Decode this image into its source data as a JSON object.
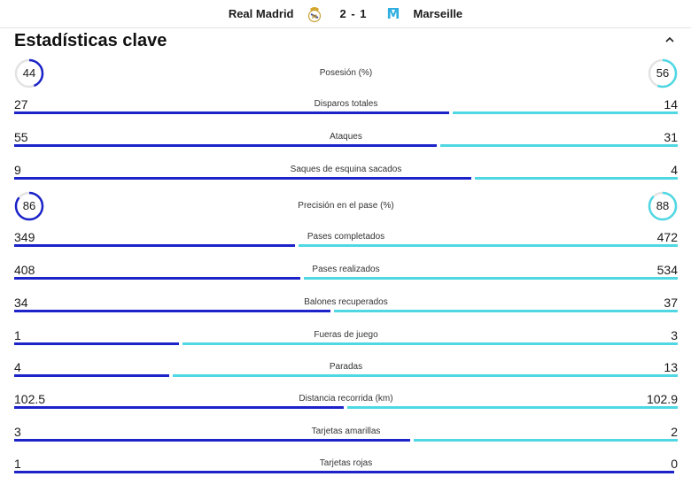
{
  "match": {
    "home_team": "Real Madrid",
    "away_team": "Marseille",
    "score": "2 - 1",
    "home_crest_icon": "real-madrid-crest",
    "away_crest_icon": "marseille-crest"
  },
  "section": {
    "title": "Estadísticas clave"
  },
  "colors": {
    "home": "#1b23c9",
    "away": "#4fd8e3"
  },
  "stats": [
    {
      "label": "Posesión (%)",
      "home": "44",
      "away": "56",
      "home_fraction": 0.44,
      "away_fraction": 0.56,
      "kind": "ring"
    },
    {
      "label": "Disparos totales",
      "home": "27",
      "away": "14",
      "home_fraction": 0.659,
      "away_fraction": 0.341,
      "kind": "bar"
    },
    {
      "label": "Ataques",
      "home": "55",
      "away": "31",
      "home_fraction": 0.64,
      "away_fraction": 0.36,
      "kind": "bar"
    },
    {
      "label": "Saques de esquina sacados",
      "home": "9",
      "away": "4",
      "home_fraction": 0.692,
      "away_fraction": 0.308,
      "kind": "bar"
    },
    {
      "label": "Precisión en el pase (%)",
      "home": "86",
      "away": "88",
      "home_fraction": 0.86,
      "away_fraction": 0.88,
      "kind": "ring"
    },
    {
      "label": "Pases completados",
      "home": "349",
      "away": "472",
      "home_fraction": 0.425,
      "away_fraction": 0.575,
      "kind": "bar"
    },
    {
      "label": "Pases realizados",
      "home": "408",
      "away": "534",
      "home_fraction": 0.433,
      "away_fraction": 0.567,
      "kind": "bar"
    },
    {
      "label": "Balones recuperados",
      "home": "34",
      "away": "37",
      "home_fraction": 0.479,
      "away_fraction": 0.521,
      "kind": "bar"
    },
    {
      "label": "Fueras de juego",
      "home": "1",
      "away": "3",
      "home_fraction": 0.25,
      "away_fraction": 0.75,
      "kind": "bar"
    },
    {
      "label": "Paradas",
      "home": "4",
      "away": "13",
      "home_fraction": 0.235,
      "away_fraction": 0.765,
      "kind": "bar"
    },
    {
      "label": "Distancia recorrida (km)",
      "home": "102.5",
      "away": "102.9",
      "home_fraction": 0.499,
      "away_fraction": 0.501,
      "kind": "bar"
    },
    {
      "label": "Tarjetas amarillas",
      "home": "3",
      "away": "2",
      "home_fraction": 0.6,
      "away_fraction": 0.4,
      "kind": "bar"
    },
    {
      "label": "Tarjetas rojas",
      "home": "1",
      "away": "0",
      "home_fraction": 1.0,
      "away_fraction": 0.0,
      "kind": "bar"
    }
  ]
}
